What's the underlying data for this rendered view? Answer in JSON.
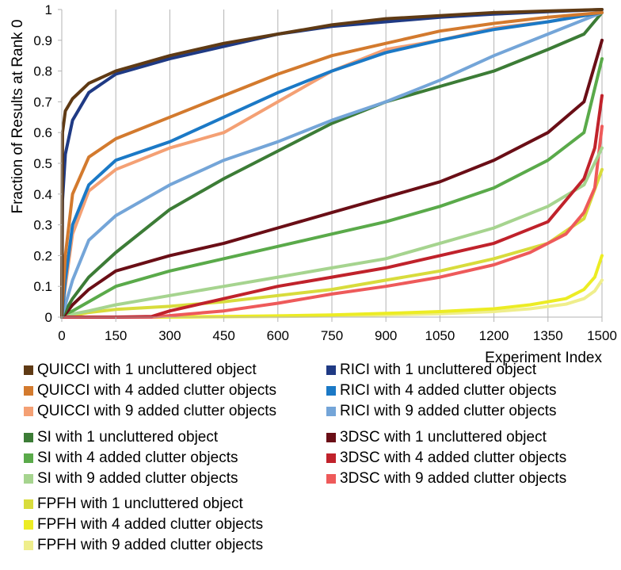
{
  "chart_data": {
    "type": "line",
    "title": "",
    "xlabel": "Experiment Index",
    "ylabel": "Fraction of Results at Rank 0",
    "xlim": [
      0,
      1500
    ],
    "ylim": [
      0,
      1
    ],
    "x_ticks": [
      "0",
      "150",
      "300",
      "450",
      "600",
      "750",
      "900",
      "1050",
      "1200",
      "1350",
      "1500"
    ],
    "y_ticks": [
      "0",
      "0.1",
      "0.2",
      "0.3",
      "0.4",
      "0.5",
      "0.6",
      "0.7",
      "0.8",
      "0.9",
      "1"
    ],
    "grid": "vertical",
    "legend_position": "bottom",
    "series": [
      {
        "name": "QUICCI with 1 uncluttered object",
        "color": "#5f3a14",
        "x": [
          0,
          2,
          10,
          30,
          75,
          150,
          300,
          450,
          600,
          750,
          900,
          1050,
          1200,
          1350,
          1500
        ],
        "y": [
          0,
          0.6,
          0.67,
          0.71,
          0.76,
          0.8,
          0.85,
          0.89,
          0.92,
          0.95,
          0.97,
          0.98,
          0.99,
          0.995,
          1.0
        ]
      },
      {
        "name": "RICI with 1 uncluttered object",
        "color": "#1f3a84",
        "x": [
          0,
          2,
          10,
          30,
          75,
          150,
          300,
          450,
          600,
          750,
          900,
          1050,
          1200,
          1350,
          1500
        ],
        "y": [
          0,
          0.38,
          0.53,
          0.64,
          0.73,
          0.79,
          0.84,
          0.88,
          0.92,
          0.945,
          0.96,
          0.975,
          0.985,
          0.993,
          1.0
        ]
      },
      {
        "name": "QUICCI with 4 added clutter objects",
        "color": "#d37a2e",
        "x": [
          0,
          2,
          10,
          30,
          75,
          150,
          300,
          450,
          600,
          750,
          900,
          1050,
          1200,
          1350,
          1500
        ],
        "y": [
          0,
          0.05,
          0.2,
          0.4,
          0.52,
          0.58,
          0.65,
          0.72,
          0.79,
          0.85,
          0.89,
          0.93,
          0.955,
          0.975,
          0.99
        ]
      },
      {
        "name": "RICI with 4 added clutter objects",
        "color": "#1b79c6",
        "x": [
          0,
          2,
          10,
          30,
          75,
          150,
          300,
          450,
          600,
          750,
          900,
          1050,
          1200,
          1350,
          1500
        ],
        "y": [
          0,
          0.02,
          0.12,
          0.3,
          0.43,
          0.51,
          0.57,
          0.65,
          0.73,
          0.8,
          0.86,
          0.9,
          0.935,
          0.96,
          0.99
        ]
      },
      {
        "name": "QUICCI with 9 added clutter objects",
        "color": "#f4a074",
        "x": [
          0,
          2,
          10,
          30,
          75,
          150,
          300,
          450,
          600,
          750,
          900,
          1050,
          1200,
          1350,
          1500
        ],
        "y": [
          0,
          0.02,
          0.1,
          0.27,
          0.41,
          0.48,
          0.55,
          0.6,
          0.7,
          0.8,
          0.87,
          0.9,
          0.94,
          0.96,
          0.99
        ]
      },
      {
        "name": "RICI with 9 added clutter objects",
        "color": "#74a5d8",
        "x": [
          0,
          2,
          10,
          30,
          75,
          150,
          300,
          450,
          600,
          750,
          900,
          1050,
          1200,
          1350,
          1500
        ],
        "y": [
          0,
          0.01,
          0.04,
          0.12,
          0.25,
          0.33,
          0.43,
          0.51,
          0.57,
          0.64,
          0.7,
          0.77,
          0.85,
          0.92,
          0.99
        ]
      },
      {
        "name": "SI with 1 uncluttered object",
        "color": "#3c7c36",
        "x": [
          0,
          10,
          30,
          75,
          150,
          300,
          450,
          600,
          750,
          900,
          1050,
          1200,
          1350,
          1450,
          1500
        ],
        "y": [
          0,
          0.02,
          0.06,
          0.13,
          0.21,
          0.35,
          0.45,
          0.54,
          0.63,
          0.7,
          0.75,
          0.8,
          0.87,
          0.92,
          0.99
        ]
      },
      {
        "name": "3DSC with 1 uncluttered object",
        "color": "#6a0e16",
        "x": [
          0,
          10,
          30,
          75,
          150,
          300,
          450,
          600,
          750,
          900,
          1050,
          1200,
          1350,
          1450,
          1500
        ],
        "y": [
          0,
          0.01,
          0.04,
          0.09,
          0.15,
          0.2,
          0.24,
          0.29,
          0.34,
          0.39,
          0.44,
          0.51,
          0.6,
          0.7,
          0.9
        ]
      },
      {
        "name": "SI with 4 added clutter objects",
        "color": "#5aaa4a",
        "x": [
          0,
          10,
          30,
          75,
          150,
          300,
          450,
          600,
          750,
          900,
          1050,
          1200,
          1350,
          1450,
          1500
        ],
        "y": [
          0,
          0.01,
          0.02,
          0.05,
          0.1,
          0.15,
          0.19,
          0.23,
          0.27,
          0.31,
          0.36,
          0.42,
          0.51,
          0.6,
          0.84
        ]
      },
      {
        "name": "3DSC with 4 added clutter objects",
        "color": "#c0222b",
        "x": [
          0,
          150,
          250,
          300,
          450,
          600,
          750,
          900,
          1050,
          1200,
          1350,
          1400,
          1450,
          1480,
          1500
        ],
        "y": [
          0,
          0,
          0.002,
          0.02,
          0.06,
          0.1,
          0.13,
          0.16,
          0.2,
          0.24,
          0.31,
          0.38,
          0.45,
          0.55,
          0.72
        ]
      },
      {
        "name": "SI with 9 added clutter objects",
        "color": "#a6d48f",
        "x": [
          0,
          10,
          30,
          75,
          150,
          300,
          450,
          600,
          750,
          900,
          1050,
          1200,
          1350,
          1450,
          1500
        ],
        "y": [
          0,
          0.005,
          0.01,
          0.02,
          0.04,
          0.07,
          0.1,
          0.13,
          0.16,
          0.19,
          0.24,
          0.29,
          0.36,
          0.43,
          0.55
        ]
      },
      {
        "name": "3DSC with 9 added clutter objects",
        "color": "#ee5a5a",
        "x": [
          0,
          250,
          300,
          450,
          600,
          750,
          900,
          1050,
          1200,
          1300,
          1400,
          1450,
          1480,
          1500
        ],
        "y": [
          0,
          0,
          0.005,
          0.02,
          0.045,
          0.075,
          0.1,
          0.13,
          0.17,
          0.21,
          0.27,
          0.34,
          0.42,
          0.62
        ]
      },
      {
        "name": "FPFH with 1 uncluttered object",
        "color": "#d8dc3c",
        "x": [
          0,
          10,
          30,
          75,
          150,
          300,
          450,
          600,
          750,
          900,
          1050,
          1200,
          1350,
          1450,
          1500
        ],
        "y": [
          0,
          0.003,
          0.005,
          0.015,
          0.025,
          0.035,
          0.05,
          0.07,
          0.09,
          0.12,
          0.15,
          0.19,
          0.24,
          0.32,
          0.48
        ]
      },
      {
        "name": "FPFH with 4 added clutter objects",
        "color": "#ecec24",
        "x": [
          0,
          300,
          450,
          600,
          750,
          900,
          1050,
          1200,
          1300,
          1400,
          1450,
          1480,
          1500
        ],
        "y": [
          0,
          0,
          0.002,
          0.004,
          0.007,
          0.012,
          0.018,
          0.027,
          0.04,
          0.06,
          0.09,
          0.13,
          0.2
        ]
      },
      {
        "name": "FPFH with 9 added clutter objects",
        "color": "#efee8c",
        "x": [
          0,
          300,
          450,
          600,
          750,
          900,
          1050,
          1200,
          1300,
          1400,
          1450,
          1480,
          1500
        ],
        "y": [
          0,
          0,
          0.001,
          0.002,
          0.004,
          0.007,
          0.011,
          0.018,
          0.027,
          0.042,
          0.06,
          0.085,
          0.12
        ]
      }
    ],
    "legend_order": [
      0,
      1,
      2,
      3,
      4,
      5,
      6,
      7,
      8,
      9,
      10,
      11,
      12,
      13,
      14
    ]
  }
}
